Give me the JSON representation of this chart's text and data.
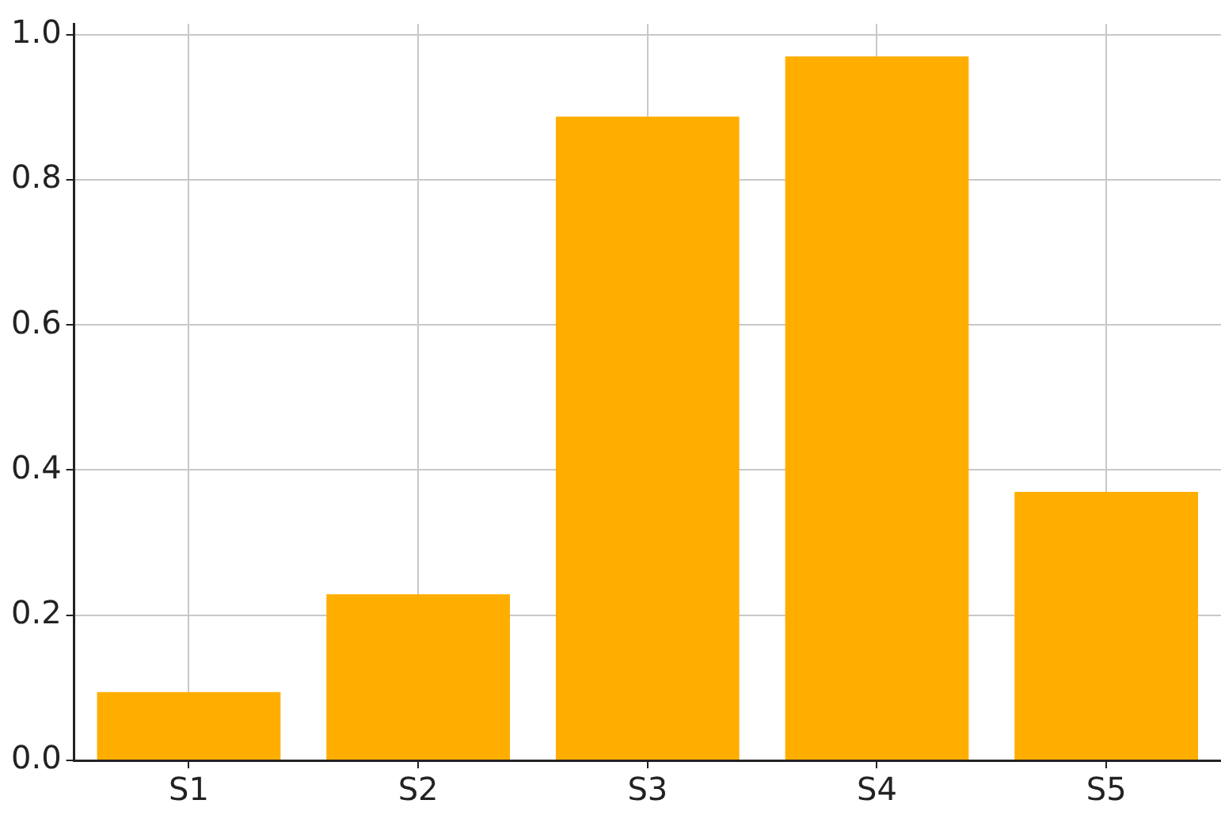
{
  "chart_data": {
    "type": "bar",
    "categories": [
      "S1",
      "S2",
      "S3",
      "S4",
      "S5"
    ],
    "values": [
      0.094,
      0.229,
      0.887,
      0.97,
      0.37
    ],
    "color": "#ffae00",
    "ylim": [
      0,
      1.015
    ],
    "yticks": [
      {
        "value": 0,
        "label": "0.0"
      },
      {
        "value": 0.2,
        "label": "0.2"
      },
      {
        "value": 0.4,
        "label": "0.4"
      },
      {
        "value": 0.6,
        "label": "0.6"
      },
      {
        "value": 0.8,
        "label": "0.8"
      },
      {
        "value": 1,
        "label": "1.0"
      }
    ],
    "grid": true
  }
}
